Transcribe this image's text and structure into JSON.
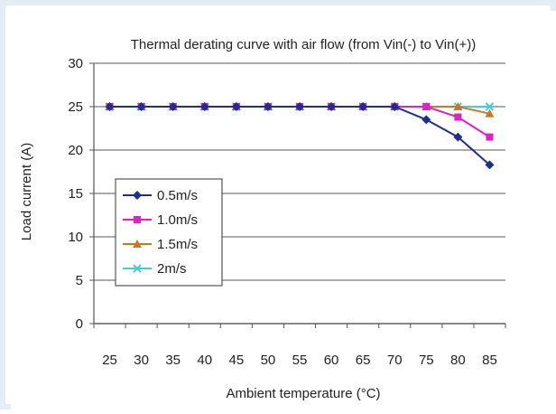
{
  "chart_data": {
    "type": "line",
    "title": "Thermal derating curve with air flow (from Vin(-) to Vin(+))",
    "xlabel": "Ambient temperature (°C)",
    "ylabel": "Load current (A)",
    "categories": [
      "25",
      "30",
      "35",
      "40",
      "45",
      "50",
      "55",
      "60",
      "65",
      "70",
      "75",
      "80",
      "85"
    ],
    "ylim": [
      0,
      30
    ],
    "yticks": [
      0,
      5,
      10,
      15,
      20,
      25,
      30
    ],
    "grid": "horizontal",
    "legend_position": "left",
    "series": [
      {
        "name": "0.5m/s",
        "color": "#1f2f8c",
        "marker": "diamond",
        "values": [
          25,
          25,
          25,
          25,
          25,
          25,
          25,
          25,
          25,
          25,
          23.5,
          21.5,
          18.3
        ]
      },
      {
        "name": "1.0m/s",
        "color": "#e020c8",
        "marker": "square",
        "values": [
          25,
          25,
          25,
          25,
          25,
          25,
          25,
          25,
          25,
          25,
          25,
          23.8,
          21.5
        ]
      },
      {
        "name": "1.5m/s",
        "color": "#c87820",
        "marker": "triangle",
        "values": [
          25,
          25,
          25,
          25,
          25,
          25,
          25,
          25,
          25,
          25,
          25,
          25,
          24.2
        ]
      },
      {
        "name": "2m/s",
        "color": "#40d0d0",
        "marker": "x",
        "values": [
          25,
          25,
          25,
          25,
          25,
          25,
          25,
          25,
          25,
          25,
          25,
          25,
          25
        ]
      }
    ]
  }
}
